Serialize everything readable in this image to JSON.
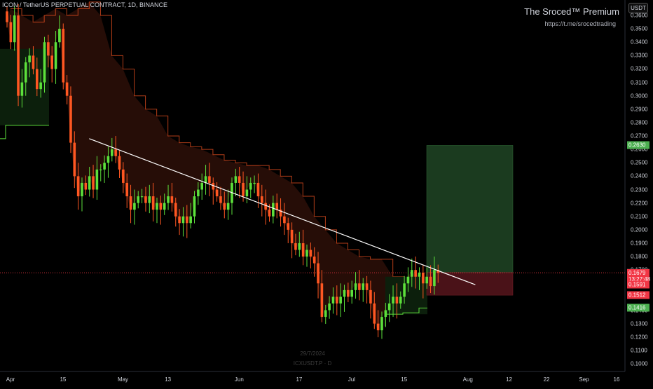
{
  "header": {
    "title": "ICON / TetherUS PERPETUAL CONTRACT, 1D, BINANCE",
    "brand": "The Sroced™ Premium",
    "brand_link": "https://t.me/srocedtrading",
    "currency": "USDT"
  },
  "watermark": {
    "date": "29/7/2024",
    "symbol": "ICXUSDT.P · D"
  },
  "colors": {
    "up": "#5de03b",
    "down": "#ff5722",
    "trendline": "#ffffff",
    "band_bear_fill": "#2a0e08",
    "band_bull_fill": "#0c1f0c",
    "target_zone": "#1b3b1f",
    "stop_zone": "#4a1218",
    "price_line": "#f23645",
    "tag_green": "#4caf50",
    "tag_red": "#f23645",
    "tag_gray": "#363a45"
  },
  "price_tags": [
    {
      "value": "0.2630",
      "price": 0.263,
      "color": "#4caf50"
    },
    {
      "value": "0.1681",
      "price": 0.1681,
      "color": "#363a45"
    },
    {
      "value": "0.1679",
      "price": 0.1679,
      "sub": "13:27:48",
      "color": "#f23645"
    },
    {
      "value": "0.1591",
      "price": 0.1591,
      "color": "#f23645"
    },
    {
      "value": "0.1512",
      "price": 0.1512,
      "color": "#f23645"
    },
    {
      "value": "0.1416",
      "price": 0.1416,
      "color": "#4caf50"
    }
  ],
  "chart_data": {
    "type": "candlestick",
    "title": "ICON / TetherUS PERPETUAL CONTRACT, 1D, BINANCE",
    "x_axis_labels": [
      "Apr",
      "15",
      "May",
      "13",
      "Jun",
      "17",
      "Jul",
      "15",
      "Aug",
      "12",
      "22",
      "Sep",
      "16"
    ],
    "y_axis_labels": [
      "0.1000",
      "0.1100",
      "0.1200",
      "0.1300",
      "0.1400",
      "0.1500",
      "0.1600",
      "0.1700",
      "0.1800",
      "0.1900",
      "0.2000",
      "0.2100",
      "0.2200",
      "0.2300",
      "0.2400",
      "0.2500",
      "0.2600",
      "0.2700",
      "0.2800",
      "0.2900",
      "0.3000",
      "0.3100",
      "0.3200",
      "0.3300",
      "0.3400",
      "0.3500",
      "0.3600"
    ],
    "ylim": [
      0.097,
      0.3645
    ],
    "close_path": [
      0.355,
      0.34,
      0.36,
      0.3,
      0.31,
      0.325,
      0.33,
      0.32,
      0.305,
      0.31,
      0.34,
      0.33,
      0.32,
      0.34,
      0.35,
      0.31,
      0.3,
      0.265,
      0.24,
      0.225,
      0.235,
      0.23,
      0.24,
      0.23,
      0.245,
      0.245,
      0.25,
      0.255,
      0.26,
      0.255,
      0.245,
      0.235,
      0.225,
      0.215,
      0.22,
      0.225,
      0.225,
      0.22,
      0.225,
      0.215,
      0.22,
      0.215,
      0.22,
      0.225,
      0.22,
      0.21,
      0.205,
      0.21,
      0.205,
      0.21,
      0.225,
      0.23,
      0.235,
      0.24,
      0.235,
      0.23,
      0.225,
      0.22,
      0.215,
      0.22,
      0.235,
      0.24,
      0.235,
      0.225,
      0.23,
      0.235,
      0.235,
      0.225,
      0.22,
      0.215,
      0.21,
      0.22,
      0.215,
      0.21,
      0.205,
      0.2,
      0.19,
      0.185,
      0.19,
      0.18,
      0.185,
      0.18,
      0.175,
      0.16,
      0.135,
      0.14,
      0.145,
      0.15,
      0.145,
      0.15,
      0.155,
      0.15,
      0.155,
      0.16,
      0.155,
      0.16,
      0.155,
      0.145,
      0.13,
      0.125,
      0.135,
      0.14,
      0.145,
      0.15,
      0.145,
      0.15,
      0.16,
      0.165,
      0.17,
      0.165,
      0.168,
      0.16,
      0.165,
      0.158,
      0.17,
      0.168
    ],
    "trendline": [
      {
        "x": "2024-04-22",
        "y": 0.268
      },
      {
        "x": "2024-08-03",
        "y": 0.159
      }
    ],
    "band": {
      "resistance": [
        0.365,
        0.36,
        0.355,
        0.36,
        0.365,
        0.36,
        0.365,
        0.37,
        0.36,
        0.33,
        0.32,
        0.3,
        0.29,
        0.285,
        0.27,
        0.265,
        0.262,
        0.26,
        0.256,
        0.252,
        0.25,
        0.248,
        0.248,
        0.245,
        0.24,
        0.235,
        0.225,
        0.21,
        0.2,
        0.19,
        0.185,
        0.18,
        0.178,
        0.178,
        0.165,
        0.16,
        0.16,
        0.16,
        0.16,
        0.16
      ]
    },
    "target": 0.263,
    "entry": 0.1681,
    "stop": 0.1512,
    "support": 0.1416
  }
}
